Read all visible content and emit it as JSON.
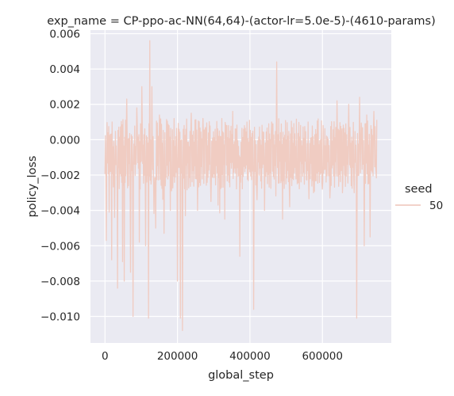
{
  "chart_data": {
    "type": "line",
    "title": "exp_name = CP-ppo-ac-NN(64,64)-(actor-lr=5.0e-5)-(4610-params)",
    "xlabel": "global_step",
    "ylabel": "policy_loss",
    "xlim": [
      -40000,
      790000
    ],
    "ylim": [
      -0.0115,
      0.0062
    ],
    "xticks": [
      0,
      200000,
      400000,
      600000
    ],
    "xtick_labels": [
      "0",
      "200000",
      "400000",
      "600000"
    ],
    "yticks": [
      -0.01,
      -0.008,
      -0.006,
      -0.004,
      -0.002,
      0.0,
      0.002,
      0.004,
      0.006
    ],
    "ytick_labels": [
      "−0.010",
      "−0.008",
      "−0.006",
      "−0.004",
      "−0.002",
      "0.000",
      "0.002",
      "0.004",
      "0.006"
    ],
    "grid": true,
    "legend": {
      "title": "seed",
      "placement": "right"
    },
    "series": [
      {
        "name": "50",
        "color": "#f0ccc2",
        "x_start": 0,
        "x_end": 750000,
        "n_points": 650,
        "base_min": -0.0028,
        "base_max": 0.0012,
        "spikes": [
          {
            "x": 4000,
            "y": -0.0057
          },
          {
            "x": 12000,
            "y": -0.0041
          },
          {
            "x": 18000,
            "y": -0.0068
          },
          {
            "x": 27000,
            "y": -0.0044
          },
          {
            "x": 35000,
            "y": -0.0084
          },
          {
            "x": 48000,
            "y": -0.0069
          },
          {
            "x": 53000,
            "y": -0.008
          },
          {
            "x": 60000,
            "y": 0.0023
          },
          {
            "x": 70000,
            "y": -0.0075
          },
          {
            "x": 77000,
            "y": -0.01
          },
          {
            "x": 88000,
            "y": 0.0018
          },
          {
            "x": 95000,
            "y": -0.0058
          },
          {
            "x": 102000,
            "y": 0.003
          },
          {
            "x": 112000,
            "y": -0.006
          },
          {
            "x": 120000,
            "y": -0.0101
          },
          {
            "x": 124000,
            "y": 0.0056
          },
          {
            "x": 130000,
            "y": 0.003
          },
          {
            "x": 140000,
            "y": -0.005
          },
          {
            "x": 150000,
            "y": 0.0014
          },
          {
            "x": 163000,
            "y": -0.0053
          },
          {
            "x": 180000,
            "y": -0.004
          },
          {
            "x": 200000,
            "y": -0.008
          },
          {
            "x": 208000,
            "y": -0.0101
          },
          {
            "x": 214000,
            "y": -0.0108
          },
          {
            "x": 222000,
            "y": -0.0043
          },
          {
            "x": 238000,
            "y": 0.0015
          },
          {
            "x": 255000,
            "y": -0.004
          },
          {
            "x": 270000,
            "y": 0.0012
          },
          {
            "x": 292000,
            "y": -0.0035
          },
          {
            "x": 312000,
            "y": -0.0037
          },
          {
            "x": 330000,
            "y": -0.0045
          },
          {
            "x": 352000,
            "y": 0.0016
          },
          {
            "x": 372000,
            "y": -0.0066
          },
          {
            "x": 392000,
            "y": 0.001
          },
          {
            "x": 410000,
            "y": -0.0096
          },
          {
            "x": 420000,
            "y": -0.0034
          },
          {
            "x": 440000,
            "y": -0.004
          },
          {
            "x": 460000,
            "y": 0.001
          },
          {
            "x": 474000,
            "y": 0.0044
          },
          {
            "x": 490000,
            "y": -0.0045
          },
          {
            "x": 510000,
            "y": -0.0038
          },
          {
            "x": 530000,
            "y": -0.0025
          },
          {
            "x": 560000,
            "y": 0.001
          },
          {
            "x": 575000,
            "y": -0.003
          },
          {
            "x": 600000,
            "y": -0.0028
          },
          {
            "x": 620000,
            "y": -0.0033
          },
          {
            "x": 640000,
            "y": 0.0022
          },
          {
            "x": 655000,
            "y": -0.003
          },
          {
            "x": 672000,
            "y": 0.002
          },
          {
            "x": 688000,
            "y": -0.003
          },
          {
            "x": 695000,
            "y": -0.0101
          },
          {
            "x": 703000,
            "y": 0.0024
          },
          {
            "x": 715000,
            "y": -0.006
          },
          {
            "x": 722000,
            "y": 0.0014
          },
          {
            "x": 732000,
            "y": -0.0055
          },
          {
            "x": 742000,
            "y": 0.0016
          },
          {
            "x": 748000,
            "y": -0.0018
          }
        ]
      }
    ]
  }
}
